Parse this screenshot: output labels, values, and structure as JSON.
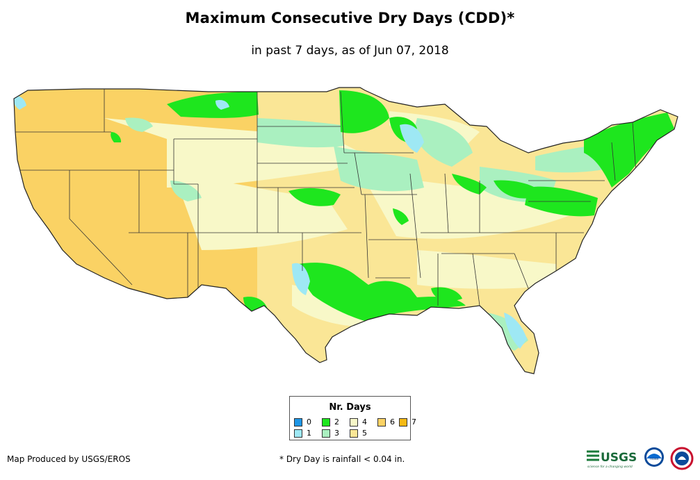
{
  "header": {
    "title": "Maximum Consecutive Dry Days (CDD)*",
    "subtitle": "in past 7 days, as of Jun 07, 2018"
  },
  "legend": {
    "title": "Nr. Days",
    "items": [
      {
        "label": "0",
        "color": "#1e96e6"
      },
      {
        "label": "1",
        "color": "#9ee8f4"
      },
      {
        "label": "2",
        "color": "#1ee61e"
      },
      {
        "label": "3",
        "color": "#aaf0c0"
      },
      {
        "label": "4",
        "color": "#f8f8c8"
      },
      {
        "label": "5",
        "color": "#fae696"
      },
      {
        "label": "6",
        "color": "#fad264"
      },
      {
        "label": "7",
        "color": "#f5b914"
      }
    ]
  },
  "footer": {
    "credit": "Map Produced by USGS/EROS",
    "note": "* Dry Day is rainfall < 0.04 in.",
    "logo_usgs": "USGS",
    "logo_usgs_tagline": "science for a changing world",
    "logo_noaa": "noaa"
  }
}
